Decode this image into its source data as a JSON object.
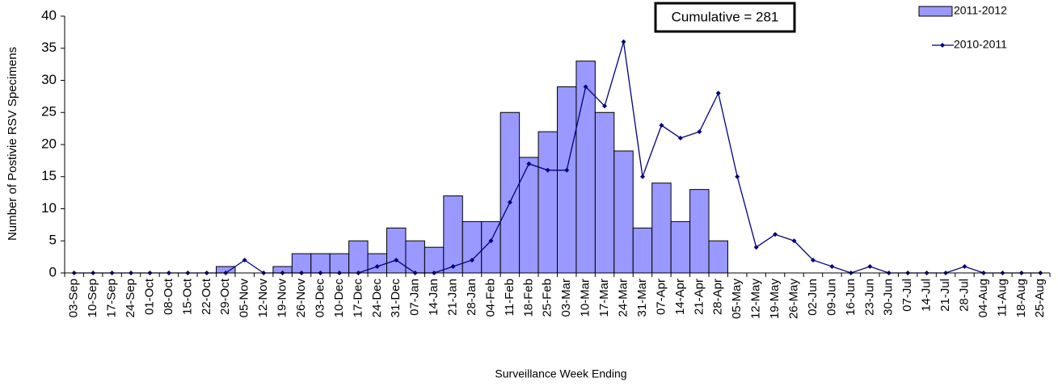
{
  "chart_data": {
    "type": "bar-line",
    "annotation": "Cumulative = 281",
    "y_label": "Number of Postivie RSV Specimens",
    "x_label": "Surveillance Week Ending",
    "categories": [
      "03-Sep",
      "10-Sep",
      "17-Sep",
      "24-Sep",
      "01-Oct",
      "08-Oct",
      "15-Oct",
      "22-Oct",
      "29-Oct",
      "05-Nov",
      "12-Nov",
      "19-Nov",
      "26-Nov",
      "03-Dec",
      "10-Dec",
      "17-Dec",
      "24-Dec",
      "31-Dec",
      "07-Jan",
      "14-Jan",
      "21-Jan",
      "28-Jan",
      "04-Feb",
      "11-Feb",
      "18-Feb",
      "25-Feb",
      "03-Mar",
      "10-Mar",
      "17-Mar",
      "24-Mar",
      "31-Mar",
      "07-Apr",
      "14-Apr",
      "21-Apr",
      "28-Apr",
      "05-May",
      "12-May",
      "19-May",
      "26-May",
      "02-Jun",
      "09-Jun",
      "16-Jun",
      "23-Jun",
      "30-Jun",
      "07-Jul",
      "14-Jul",
      "21-Jul",
      "28-Jul",
      "04-Aug",
      "11-Aug",
      "18-Aug",
      "25-Aug"
    ],
    "series": [
      {
        "name": "2011-2012",
        "type": "bar",
        "color": "#9999ff",
        "values": [
          0,
          0,
          0,
          0,
          0,
          0,
          0,
          0,
          1,
          0,
          0,
          1,
          3,
          3,
          3,
          5,
          3,
          7,
          5,
          4,
          12,
          8,
          8,
          25,
          18,
          22,
          29,
          33,
          25,
          19,
          7,
          14,
          8,
          13,
          5,
          null,
          null,
          null,
          null,
          null,
          null,
          null,
          null,
          null,
          null,
          null,
          null,
          null,
          null,
          null,
          null,
          null
        ]
      },
      {
        "name": "2010-2011",
        "type": "line",
        "color": "#000080",
        "values": [
          0,
          0,
          0,
          0,
          0,
          0,
          0,
          0,
          0,
          2,
          0,
          0,
          0,
          0,
          0,
          0,
          1,
          2,
          0,
          0,
          1,
          2,
          5,
          11,
          17,
          16,
          16,
          29,
          26,
          36,
          15,
          23,
          21,
          22,
          28,
          15,
          4,
          6,
          5,
          2,
          1,
          0,
          1,
          0,
          0,
          0,
          0,
          1,
          0,
          0,
          0,
          0
        ]
      }
    ],
    "ylim": [
      0,
      40
    ],
    "yticks": [
      0,
      5,
      10,
      15,
      20,
      25,
      30,
      35,
      40
    ],
    "legend": "top-right"
  }
}
